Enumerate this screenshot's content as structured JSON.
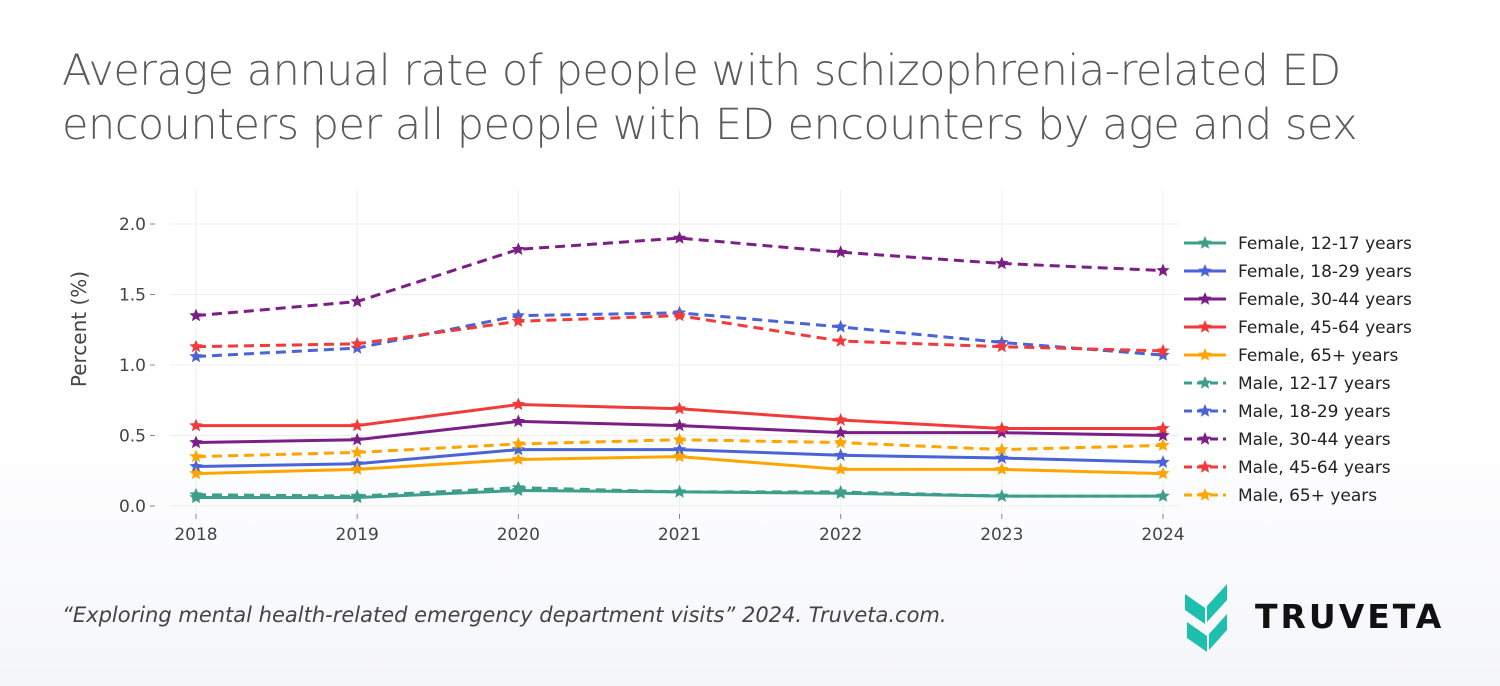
{
  "title": "Average annual rate of people with schizophrenia-related ED encounters per all people with ED encounters by age and sex",
  "source": "“Exploring mental health-related emergency department visits” 2024. Truveta.com.",
  "logo": {
    "text": "TRUVETA",
    "color": "#1fbfae"
  },
  "chart_data": {
    "type": "line",
    "title": "",
    "xlabel": "",
    "ylabel": "Percent (%)",
    "x": [
      2018,
      2019,
      2020,
      2021,
      2022,
      2023,
      2024
    ],
    "yticks": [
      0.0,
      0.5,
      1.0,
      1.5,
      2.0
    ],
    "ytick_labels": [
      "0.0",
      "0.5",
      "1.0",
      "1.5",
      "2.0"
    ],
    "ylim": [
      0,
      2.2
    ],
    "grid": true,
    "legend_placement": "right",
    "marker": "star",
    "series": [
      {
        "name": "Female, 12-17 years",
        "color": "#3d9e8a",
        "dash": false,
        "values": [
          0.06,
          0.06,
          0.11,
          0.1,
          0.09,
          0.07,
          0.07
        ]
      },
      {
        "name": "Female, 18-29 years",
        "color": "#4a63d6",
        "dash": false,
        "values": [
          0.28,
          0.3,
          0.4,
          0.4,
          0.36,
          0.34,
          0.31
        ]
      },
      {
        "name": "Female, 30-44 years",
        "color": "#7b1f86",
        "dash": false,
        "values": [
          0.45,
          0.47,
          0.6,
          0.57,
          0.52,
          0.52,
          0.5
        ]
      },
      {
        "name": "Female, 45-64 years",
        "color": "#f23a3a",
        "dash": false,
        "values": [
          0.57,
          0.57,
          0.72,
          0.69,
          0.61,
          0.55,
          0.55
        ]
      },
      {
        "name": "Female, 65+ years",
        "color": "#ffa500",
        "dash": false,
        "values": [
          0.23,
          0.26,
          0.33,
          0.35,
          0.26,
          0.26,
          0.23
        ]
      },
      {
        "name": "Male, 12-17 years",
        "color": "#3d9e8a",
        "dash": true,
        "values": [
          0.08,
          0.07,
          0.13,
          0.1,
          0.1,
          0.07,
          0.07
        ]
      },
      {
        "name": "Male, 18-29 years",
        "color": "#4a63d6",
        "dash": true,
        "values": [
          1.06,
          1.12,
          1.35,
          1.37,
          1.27,
          1.16,
          1.07
        ]
      },
      {
        "name": "Male, 30-44 years",
        "color": "#7b1f86",
        "dash": true,
        "values": [
          1.35,
          1.45,
          1.82,
          1.9,
          1.8,
          1.72,
          1.67
        ]
      },
      {
        "name": "Male, 45-64 years",
        "color": "#f23a3a",
        "dash": true,
        "values": [
          1.13,
          1.15,
          1.31,
          1.35,
          1.17,
          1.13,
          1.1
        ]
      },
      {
        "name": "Male, 65+ years",
        "color": "#ffa500",
        "dash": true,
        "values": [
          0.35,
          0.38,
          0.44,
          0.47,
          0.45,
          0.4,
          0.43
        ]
      }
    ]
  }
}
